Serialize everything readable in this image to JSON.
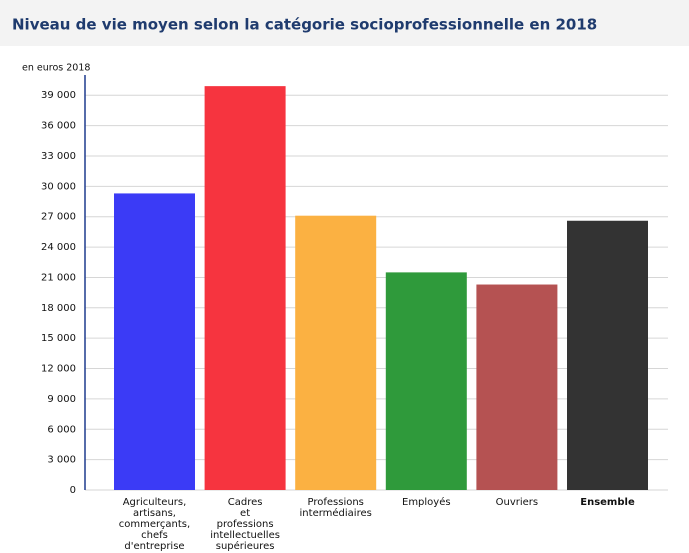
{
  "chart_data": {
    "type": "bar",
    "title": "Niveau de vie moyen selon la catégorie socioprofessionnelle en 2018",
    "y_axis_label": "en euros 2018",
    "categories": [
      "Agriculteurs, artisans, commerçants, chefs d'entreprise",
      "Cadres et professions intellectuelles supérieures",
      "Professions intermédiaires",
      "Employés",
      "Ouvriers",
      "Ensemble"
    ],
    "values": [
      29300,
      39900,
      27100,
      21500,
      20300,
      26600
    ],
    "colors": [
      "#3b3bf6",
      "#f6343f",
      "#fbb142",
      "#2f9a3b",
      "#b55252",
      "#333333"
    ],
    "ylim": [
      0,
      41000
    ],
    "yticks": [
      0,
      {
        "value": 3000,
        "label": "3 000"
      },
      {
        "value": 6000,
        "label": "6 000"
      },
      {
        "value": 9000,
        "label": "9 000"
      },
      {
        "value": 12000,
        "label": "12 000"
      },
      {
        "value": 15000,
        "label": "15 000"
      },
      {
        "value": 18000,
        "label": "18 000"
      },
      {
        "value": 21000,
        "label": "21 000"
      },
      {
        "value": 24000,
        "label": "24 000"
      },
      {
        "value": 27000,
        "label": "27 000"
      },
      {
        "value": 30000,
        "label": "30 000"
      },
      {
        "value": 33000,
        "label": "33 000"
      },
      {
        "value": 36000,
        "label": "36 000"
      },
      {
        "value": 39000,
        "label": "39 000"
      }
    ],
    "grid": true
  }
}
